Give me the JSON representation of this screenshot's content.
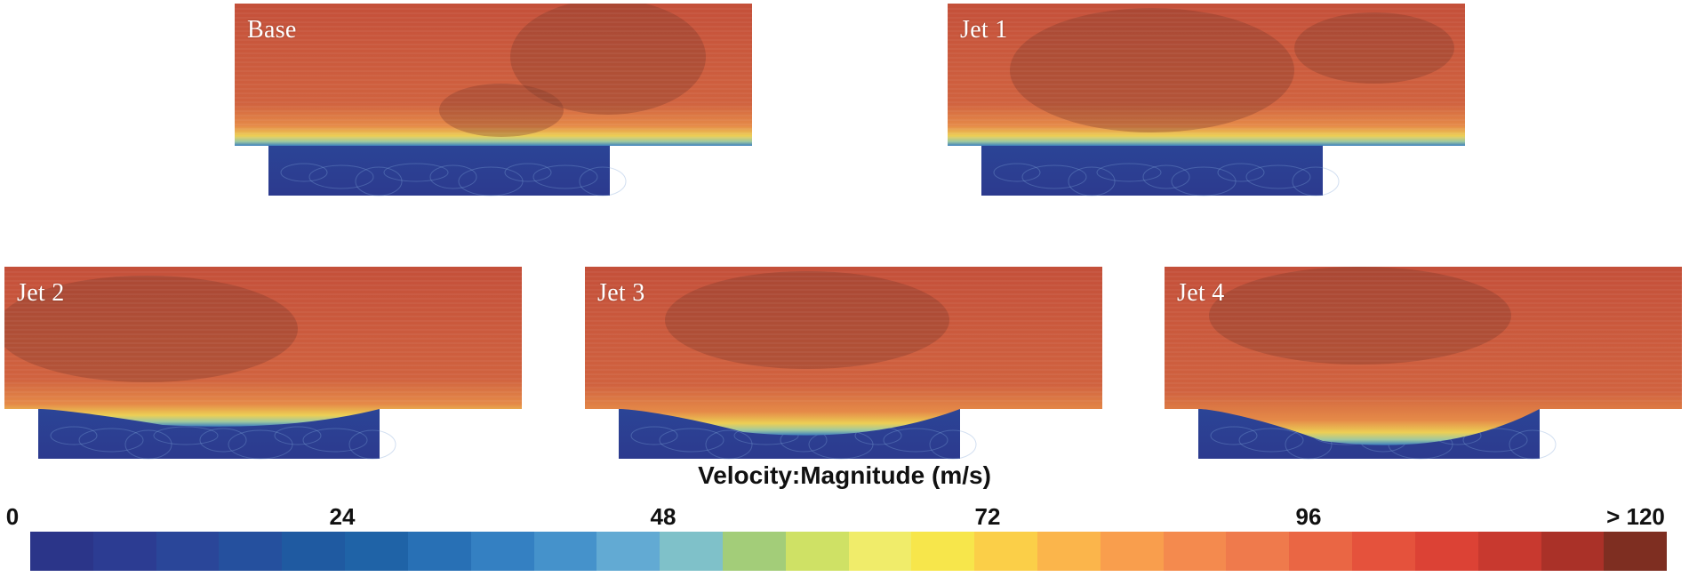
{
  "panels": [
    {
      "id": "base",
      "label": "Base",
      "variant": 0
    },
    {
      "id": "jet1",
      "label": "Jet 1",
      "variant": 1
    },
    {
      "id": "jet2",
      "label": "Jet 2",
      "variant": 2
    },
    {
      "id": "jet3",
      "label": "Jet 3",
      "variant": 3
    },
    {
      "id": "jet4",
      "label": "Jet 4",
      "variant": 4
    }
  ],
  "legend": {
    "title": "Velocity:Magnitude (m/s)",
    "ticks": [
      "0",
      "24",
      "48",
      "72",
      "96",
      "> 120"
    ],
    "min": 0,
    "max": 120,
    "colors": [
      "#2b3589",
      "#2c3c92",
      "#2a4699",
      "#25509e",
      "#1f5aa1",
      "#1f63a7",
      "#2870b5",
      "#3480c2",
      "#4592cb",
      "#62aad3",
      "#7fc1c9",
      "#a3cd79",
      "#cfe165",
      "#f0ec6a",
      "#f7e64b",
      "#fbcf48",
      "#fbb54b",
      "#f99e4d",
      "#f48a4e",
      "#ef7a4c",
      "#ea6644",
      "#e5523c",
      "#dc4235",
      "#c8392f",
      "#aa3128",
      "#7e2e21"
    ]
  }
}
